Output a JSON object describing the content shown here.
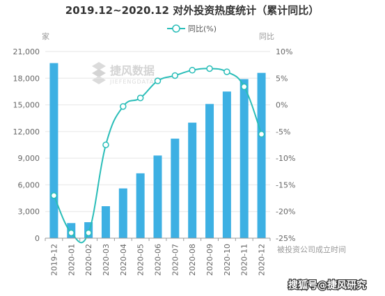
{
  "chart_data": {
    "type": "bar",
    "title": "2019.12~2020.12 对外投资热度统计（累计同比）",
    "categories": [
      "2019-12",
      "2020-01",
      "2020-02",
      "2020-03",
      "2020-04",
      "2020-05",
      "2020-06",
      "2020-07",
      "2020-08",
      "2020-09",
      "2020-10",
      "2020-11",
      "2020-12"
    ],
    "series": [
      {
        "name": "",
        "type": "bar",
        "axis": "left",
        "color": "#3db0e3",
        "values": [
          19700,
          1700,
          1800,
          3600,
          5600,
          7300,
          9300,
          11200,
          13000,
          15100,
          16500,
          17900,
          18600
        ]
      },
      {
        "name": "同比(%)",
        "type": "line",
        "axis": "right",
        "color": "#29bdb8",
        "values": [
          -17,
          -24,
          -24,
          -7.5,
          -0.3,
          1.3,
          4.5,
          5.5,
          6.5,
          6.8,
          6.2,
          3.4,
          -5.5
        ]
      }
    ],
    "left_axis": {
      "label": "家",
      "range": [
        0,
        21000
      ],
      "ticks": [
        "0",
        "3,000",
        "6,000",
        "9,000",
        "12,000",
        "15,000",
        "18,000",
        "21,000"
      ]
    },
    "right_axis": {
      "label": "同比",
      "range": [
        -25,
        10
      ],
      "ticks": [
        "-25%",
        "-20%",
        "-15%",
        "-10%",
        "-5%",
        "0%",
        "5%",
        "10%"
      ]
    },
    "x_note": "被投资公司成立时间",
    "legend": {
      "position": "top-center",
      "label": "同比(%)"
    },
    "grid": true
  },
  "watermark": {
    "text": "捷风数据",
    "sub": "JIEFENGDATA"
  },
  "footer": {
    "text": "搜狐号@捷风研究"
  }
}
